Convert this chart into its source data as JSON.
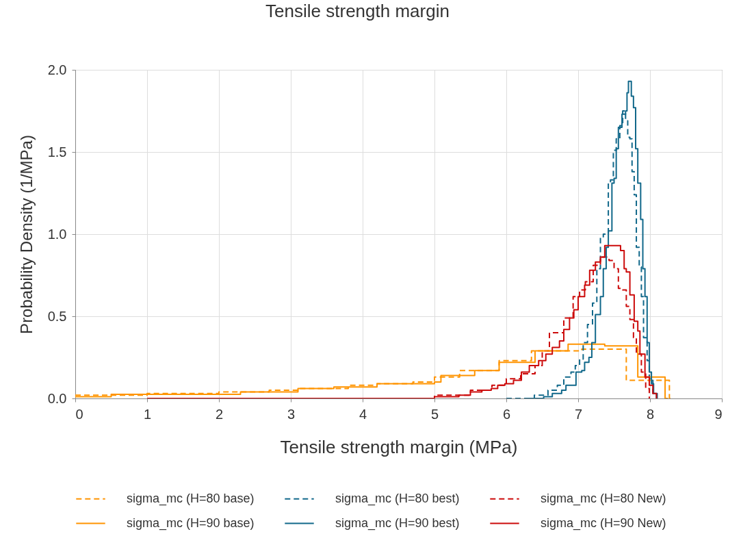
{
  "chart_data": {
    "type": "step",
    "title": "Tensile strength margin",
    "xlabel": "Tensile strength margin  (MPa)",
    "ylabel": "Probability Density (1/MPa)",
    "xlim": [
      0,
      9
    ],
    "xticks": [
      0,
      1,
      2,
      3,
      4,
      5,
      6,
      7,
      8,
      9
    ],
    "ylim": [
      0,
      2
    ],
    "yticks": [
      {
        "value": 0,
        "label": "0.0"
      },
      0.5,
      {
        "value": 1,
        "label": "1.0"
      },
      1.5,
      {
        "value": 2,
        "label": "2.0"
      }
    ],
    "grid": true,
    "legend": "bottom",
    "series": [
      {
        "name": "sigma_mc (H=80 base)",
        "color": "#ff9400",
        "line_style": "dashed",
        "x": [
          0,
          1.0,
          2.0,
          2.7,
          3.1,
          3.8,
          4.2,
          4.7,
          5.0,
          5.35,
          5.9,
          6.35,
          7.05,
          7.67,
          8.27,
          8.3
        ],
        "values": [
          0.02,
          0.03,
          0.04,
          0.05,
          0.06,
          0.08,
          0.09,
          0.1,
          0.13,
          0.17,
          0.23,
          0.29,
          0.3,
          0.11,
          0,
          0
        ]
      },
      {
        "name": "sigma_mc (H=80 best)",
        "color": "#11688a",
        "line_style": "dashed",
        "x": [
          6.0,
          6.39,
          6.58,
          6.71,
          6.8,
          6.9,
          6.96,
          7.02,
          7.07,
          7.13,
          7.2,
          7.26,
          7.31,
          7.35,
          7.42,
          7.45,
          7.49,
          7.53,
          7.58,
          7.62,
          7.66,
          7.69,
          7.72,
          7.75,
          7.78,
          7.81,
          7.85,
          7.88,
          7.91,
          7.96,
          7.99,
          8.04,
          8.09
        ],
        "values": [
          0,
          0.02,
          0.05,
          0.08,
          0.13,
          0.16,
          0.2,
          0.24,
          0.34,
          0.45,
          0.58,
          0.79,
          0.98,
          1.0,
          1.31,
          1.33,
          1.51,
          1.58,
          1.66,
          1.75,
          1.69,
          1.59,
          1.58,
          1.38,
          1.24,
          0.92,
          0.8,
          0.62,
          0.37,
          0.23,
          0.12,
          0.03,
          0
        ]
      },
      {
        "name": "sigma_mc (H=80 New)",
        "color": "#cc0a0a",
        "line_style": "dashed",
        "x": [
          1.0,
          5.0,
          5.5,
          5.8,
          6.0,
          6.2,
          6.4,
          6.5,
          6.6,
          6.8,
          6.93,
          7.02,
          7.1,
          7.21,
          7.31,
          7.43,
          7.5,
          7.56,
          7.62,
          7.67,
          7.72,
          7.77,
          7.81,
          7.88,
          7.94,
          7.99
        ],
        "values": [
          0,
          0.02,
          0.05,
          0.08,
          0.12,
          0.15,
          0.2,
          0.29,
          0.4,
          0.49,
          0.62,
          0.66,
          0.71,
          0.81,
          0.86,
          0.84,
          0.79,
          0.67,
          0.66,
          0.56,
          0.48,
          0.37,
          0.27,
          0.16,
          0.06,
          0
        ]
      },
      {
        "name": "sigma_mc (H=90 base)",
        "color": "#ff9400",
        "line_style": "solid",
        "x": [
          0,
          0.5,
          2.3,
          3.1,
          3.6,
          4.2,
          5.0,
          5.09,
          5.56,
          5.9,
          6.4,
          6.86,
          7.37,
          7.83,
          8.21,
          8.25
        ],
        "values": [
          0.01,
          0.025,
          0.04,
          0.06,
          0.07,
          0.09,
          0.1,
          0.14,
          0.17,
          0.22,
          0.29,
          0.33,
          0.32,
          0.13,
          0,
          0
        ]
      },
      {
        "name": "sigma_mc (H=90 best)",
        "color": "#11688a",
        "line_style": "solid",
        "x": [
          6.3,
          6.52,
          6.64,
          6.77,
          6.83,
          6.97,
          7.05,
          7.09,
          7.15,
          7.19,
          7.24,
          7.31,
          7.35,
          7.39,
          7.42,
          7.47,
          7.5,
          7.53,
          7.56,
          7.61,
          7.66,
          7.68,
          7.7,
          7.74,
          7.77,
          7.8,
          7.83,
          7.87,
          7.9,
          7.93,
          7.96,
          7.99,
          8.02,
          8.05,
          8.1
        ],
        "values": [
          0,
          0.01,
          0.03,
          0.05,
          0.08,
          0.16,
          0.17,
          0.22,
          0.25,
          0.34,
          0.51,
          0.62,
          0.79,
          0.92,
          1.02,
          1.31,
          1.34,
          1.52,
          1.65,
          1.73,
          1.75,
          1.86,
          1.93,
          1.84,
          1.77,
          1.52,
          1.31,
          1.09,
          0.79,
          0.62,
          0.34,
          0.16,
          0.09,
          0.03,
          0
        ]
      },
      {
        "name": "sigma_mc (H=90 New)",
        "color": "#cc0a0a",
        "line_style": "solid",
        "x": [
          1.0,
          5.0,
          5.34,
          5.5,
          5.66,
          5.79,
          5.88,
          5.98,
          6.1,
          6.21,
          6.32,
          6.45,
          6.55,
          6.64,
          6.74,
          6.8,
          6.88,
          6.94,
          7.0,
          7.09,
          7.16,
          7.24,
          7.31,
          7.37,
          7.59,
          7.64,
          7.67,
          7.72,
          7.78,
          7.83,
          7.86,
          7.93,
          7.99,
          8.04,
          8.09
        ],
        "values": [
          0,
          0.01,
          0.02,
          0.04,
          0.05,
          0.06,
          0.08,
          0.09,
          0.11,
          0.16,
          0.2,
          0.23,
          0.27,
          0.31,
          0.35,
          0.42,
          0.49,
          0.54,
          0.62,
          0.69,
          0.78,
          0.83,
          0.86,
          0.93,
          0.9,
          0.79,
          0.77,
          0.63,
          0.47,
          0.41,
          0.27,
          0.13,
          0.08,
          0.03,
          0
        ]
      }
    ]
  }
}
